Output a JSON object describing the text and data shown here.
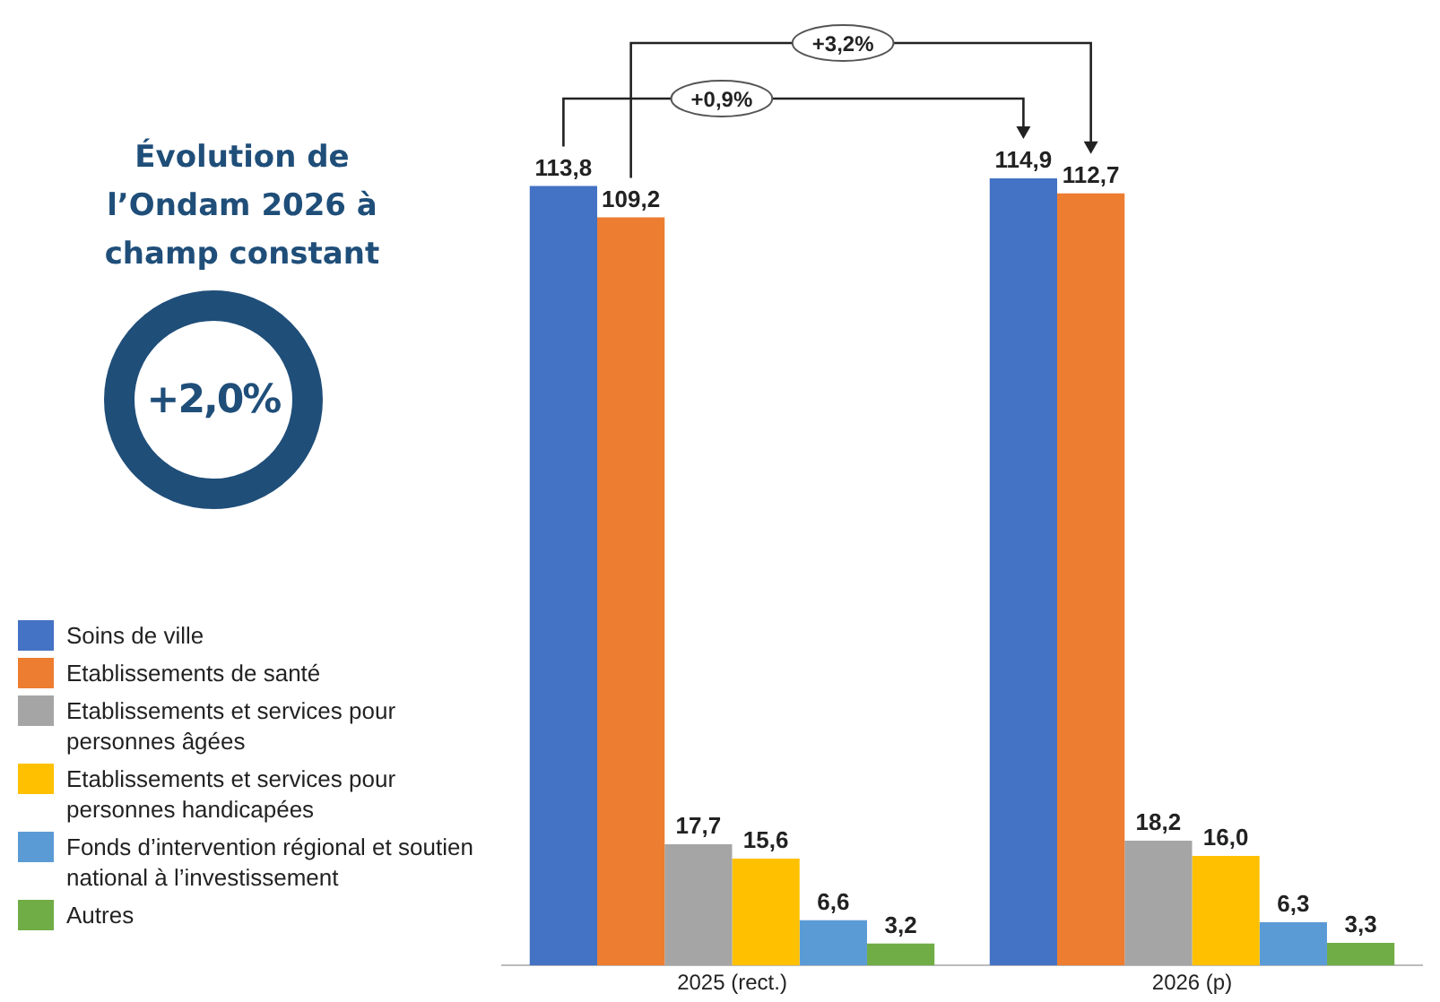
{
  "chart_data": {
    "type": "bar",
    "title": "Évolution de l’Ondam 2026 à champ constant",
    "categories": [
      "2025 (rect.)",
      "2026 (p)"
    ],
    "tick_labels": "x",
    "grid": false,
    "legend": "left",
    "series": [
      {
        "name": "Soins de ville",
        "color": "#4472c4",
        "values": [
          113.8,
          114.9
        ],
        "value_labels": [
          "113,8",
          "114,9"
        ]
      },
      {
        "name": "Etablissements de santé",
        "color": "#ed7d31",
        "values": [
          109.2,
          112.7
        ],
        "value_labels": [
          "109,2",
          "112,7"
        ]
      },
      {
        "name": "Etablissements et services pour personnes âgées",
        "color": "#a5a5a5",
        "values": [
          17.7,
          18.2
        ],
        "value_labels": [
          "17,7",
          "18,2"
        ]
      },
      {
        "name": "Etablissements et services pour personnes handicapées",
        "color": "#ffc000",
        "values": [
          15.6,
          16.0
        ],
        "value_labels": [
          "15,6",
          "16,0"
        ]
      },
      {
        "name": "Fonds d’intervention régional et soutien national à l’investissement",
        "color": "#5b9bd5",
        "values": [
          6.6,
          6.3
        ],
        "value_labels": [
          "6,6",
          "6,3"
        ]
      },
      {
        "name": "Autres",
        "color": "#70ad47",
        "values": [
          3.2,
          3.3
        ],
        "value_labels": [
          "3,2",
          "3,3"
        ]
      }
    ],
    "annotations": [
      "+0,9%",
      "+3,2%",
      "+2,0%"
    ]
  }
}
